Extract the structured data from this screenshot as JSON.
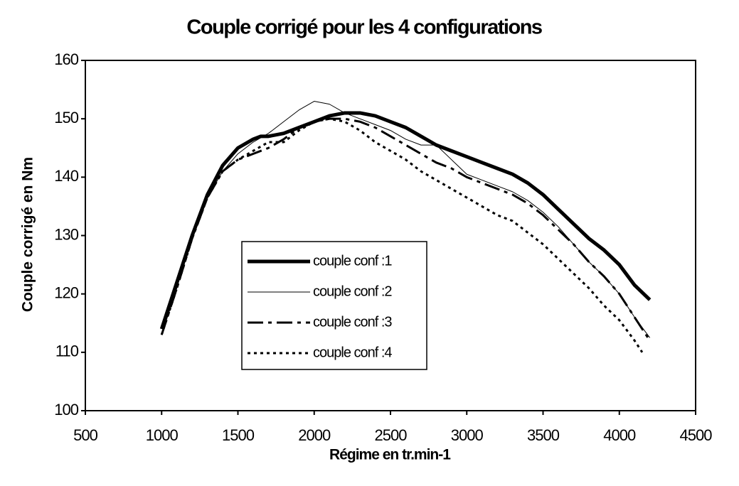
{
  "chart_data": {
    "type": "line",
    "title": "Couple corrigé pour les 4 configurations",
    "x_label": "Régime en tr.min-1",
    "y_label": "Couple corrigé en Nm",
    "xlim": [
      500,
      4500
    ],
    "xticks": [
      500,
      1000,
      1500,
      2000,
      2500,
      3000,
      3500,
      4000,
      4500
    ],
    "ylim": [
      100,
      160
    ],
    "yticks": [
      100,
      110,
      120,
      130,
      140,
      150,
      160
    ],
    "series": [
      {
        "name": "couple conf :1",
        "color": "#000000",
        "width": 5,
        "dash": "none",
        "x": [
          1000,
          1100,
          1200,
          1300,
          1400,
          1500,
          1600,
          1650,
          1700,
          1800,
          1900,
          2000,
          2100,
          2200,
          2300,
          2400,
          2500,
          2600,
          2700,
          2800,
          2900,
          3000,
          3100,
          3200,
          3300,
          3400,
          3500,
          3600,
          3700,
          3800,
          3900,
          4000,
          4100,
          4200
        ],
        "values": [
          114,
          122,
          130,
          137,
          142,
          145,
          146.5,
          147,
          147,
          147.5,
          148.5,
          149.5,
          150.5,
          151,
          151,
          150.5,
          149.5,
          148.5,
          147,
          145.5,
          144.5,
          143.5,
          142.5,
          141.5,
          140.5,
          139,
          137,
          134.5,
          132,
          129.5,
          127.5,
          125,
          121.5,
          119
        ]
      },
      {
        "name": "couple conf :2",
        "color": "#000000",
        "width": 1,
        "dash": "none",
        "x": [
          1000,
          1100,
          1200,
          1300,
          1400,
          1500,
          1600,
          1700,
          1800,
          1900,
          2000,
          2100,
          2200,
          2300,
          2400,
          2500,
          2600,
          2700,
          2800,
          2900,
          3000,
          3100,
          3200,
          3300,
          3400,
          3500,
          3600,
          3700,
          3800,
          3900,
          4000,
          4100,
          4200
        ],
        "values": [
          113,
          121,
          130,
          136.5,
          141,
          144,
          146,
          147.5,
          149.5,
          151.5,
          153,
          152.5,
          151,
          150,
          149,
          148,
          146.5,
          145.5,
          145.5,
          143,
          140.5,
          139.5,
          138.5,
          137.5,
          136,
          134,
          131.5,
          128.5,
          125.5,
          123,
          120,
          116,
          112.5
        ]
      },
      {
        "name": "couple conf :3",
        "color": "#000000",
        "width": 3,
        "dash": "22 7 5 7",
        "x": [
          1000,
          1100,
          1200,
          1300,
          1400,
          1500,
          1600,
          1700,
          1800,
          1900,
          2000,
          2100,
          2200,
          2300,
          2400,
          2500,
          2600,
          2700,
          2800,
          2900,
          3000,
          3100,
          3200,
          3300,
          3400,
          3500,
          3600,
          3700,
          3800,
          3900,
          4000,
          4100,
          4200
        ],
        "values": [
          113,
          121,
          129.5,
          136.5,
          141,
          143,
          144,
          145,
          146.5,
          148.5,
          149.5,
          150,
          150,
          149.5,
          148.5,
          147,
          145.5,
          144,
          142.5,
          141.5,
          140,
          139,
          138,
          137,
          135.5,
          133.5,
          131,
          128.5,
          125.5,
          123,
          120,
          116,
          112
        ]
      },
      {
        "name": "couple conf :4",
        "color": "#000000",
        "width": 3,
        "dash": "4 5",
        "x": [
          1000,
          1100,
          1200,
          1300,
          1400,
          1500,
          1600,
          1700,
          1800,
          1900,
          2000,
          2100,
          2200,
          2300,
          2400,
          2500,
          2600,
          2700,
          2800,
          2900,
          3000,
          3100,
          3200,
          3300,
          3400,
          3500,
          3600,
          3700,
          3800,
          3900,
          4000,
          4100,
          4150
        ],
        "values": [
          113,
          121,
          129.5,
          136.5,
          141,
          143,
          144.5,
          146,
          146,
          148,
          149.5,
          150,
          149.5,
          148,
          146,
          144.5,
          143,
          141,
          139.5,
          138,
          136.5,
          135,
          133.5,
          132.5,
          130.5,
          128.5,
          126,
          123.5,
          121,
          118,
          115.5,
          112,
          110
        ]
      }
    ]
  }
}
